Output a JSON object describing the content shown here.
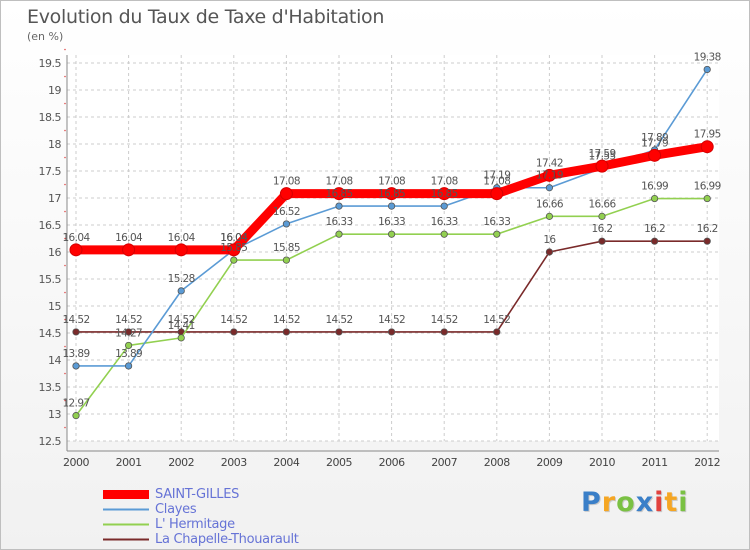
{
  "chart_data": {
    "type": "line",
    "title": "Evolution du Taux de Taxe d'Habitation",
    "ylabel": "(en %)",
    "xlabel": "",
    "categories": [
      "2000",
      "2001",
      "2002",
      "2003",
      "2004",
      "2005",
      "2006",
      "2007",
      "2008",
      "2009",
      "2010",
      "2011",
      "2012"
    ],
    "yticks": [
      "12.5",
      "13",
      "13.5",
      "14",
      "14.5",
      "15",
      "15.5",
      "16",
      "16.5",
      "17",
      "17.5",
      "18",
      "18.5",
      "19",
      "19.5"
    ],
    "ylim": [
      12.5,
      19.5
    ],
    "grid": true,
    "legend_position": "bottom-left",
    "series": [
      {
        "name": "SAINT-GILLES",
        "color": "#ff0000",
        "values": [
          16.04,
          16.04,
          16.04,
          16.04,
          17.08,
          17.08,
          17.08,
          17.08,
          17.08,
          17.42,
          17.59,
          17.79,
          17.95
        ],
        "labels": [
          "16.04",
          "16.04",
          "16.04",
          "16.04",
          "17.08",
          "17.08",
          "17.08",
          "17.08",
          "17.08",
          "17.42",
          "17.59",
          "17.79",
          "17.95"
        ]
      },
      {
        "name": "Clayes",
        "color": "#5b9bd5",
        "values": [
          13.89,
          13.89,
          15.28,
          16.04,
          16.52,
          16.85,
          16.85,
          16.85,
          17.19,
          17.19,
          17.55,
          17.89,
          19.38
        ],
        "labels": [
          "13.89",
          "13.89",
          "15.28",
          "16.04",
          "16.52",
          "16.85",
          "16.85",
          "16.85",
          "17.19",
          "17.19",
          "17.55",
          "17.89",
          "19.38"
        ]
      },
      {
        "name": "L' Hermitage",
        "color": "#92d050",
        "values": [
          12.97,
          14.27,
          14.41,
          15.85,
          15.85,
          16.33,
          16.33,
          16.33,
          16.33,
          16.66,
          16.66,
          16.99,
          16.99
        ],
        "labels": [
          "12.97",
          "14.27",
          "14.41",
          "15.85",
          "15.85",
          "16.33",
          "16.33",
          "16.33",
          "16.33",
          "16.66",
          "16.66",
          "16.99",
          "16.99"
        ]
      },
      {
        "name": "La Chapelle-Thouarault",
        "color": "#7a2a2a",
        "values": [
          14.52,
          14.52,
          14.52,
          14.52,
          14.52,
          14.52,
          14.52,
          14.52,
          14.52,
          16,
          16.2,
          16.2,
          16.2
        ],
        "labels": [
          "14.52",
          "14.52",
          "14.52",
          "14.52",
          "14.52",
          "14.52",
          "14.52",
          "14.52",
          "14.52",
          "16",
          "16.2",
          "16.2",
          "16.2"
        ]
      }
    ]
  },
  "logo": {
    "letters": [
      "P",
      "r",
      "o",
      "x",
      "i",
      "t",
      "i"
    ],
    "colors": [
      "#3a7fc8",
      "#f5a623",
      "#7ac143",
      "#3a7fc8",
      "#e2423e",
      "#f5a623",
      "#7ac143"
    ]
  }
}
